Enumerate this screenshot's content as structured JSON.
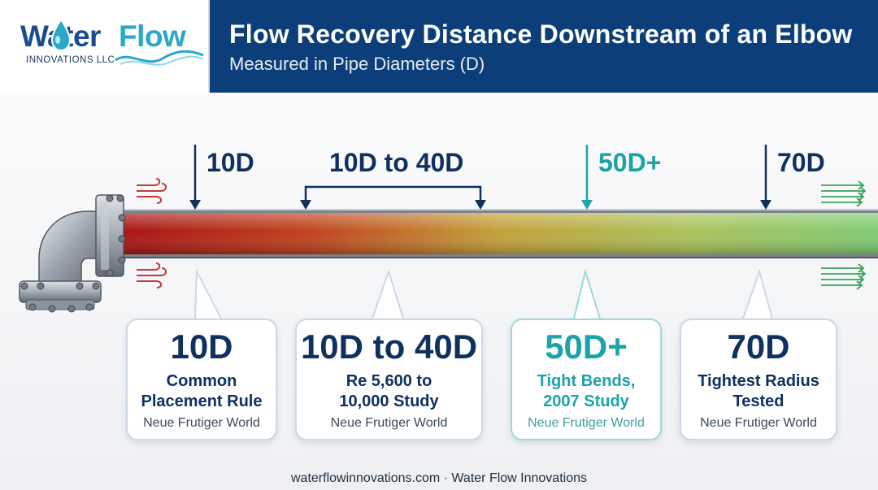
{
  "logo": {
    "brand_word_1": "Water",
    "brand_word_2": "Flow",
    "subtext": "INNOVATIONS LLC"
  },
  "header": {
    "title": "Flow Recovery Distance Downstream of an Elbow",
    "subtitle": "Measured in Pipe Diameters (D)"
  },
  "markers": [
    {
      "label": "10D",
      "style": "single-arrow",
      "color": "#0f3160"
    },
    {
      "label": "10D to 40D",
      "style": "range-bracket",
      "color": "#0f3160"
    },
    {
      "label": "50D+",
      "style": "single-arrow",
      "color": "#1aa3a8"
    },
    {
      "label": "70D",
      "style": "single-arrow",
      "color": "#0f3160"
    }
  ],
  "cards": [
    {
      "value": "10D",
      "desc_line1": "Common",
      "desc_line2": "Placement Rule",
      "source": "Neue Frutiger World"
    },
    {
      "value": "10D to 40D",
      "desc_line1": "Re 5,600 to",
      "desc_line2": "10,000 Study",
      "source": "Neue Frutiger World"
    },
    {
      "value": "50D+",
      "desc_line1": "Tight Bends,",
      "desc_line2": "2007 Study",
      "source": "Neue Frutiger World"
    },
    {
      "value": "70D",
      "desc_line1": "Tightest Radius",
      "desc_line2": "Tested",
      "source": "Neue Frutiger World"
    }
  ],
  "pipe": {
    "gradient_colors": [
      "#b01616",
      "#c0421c",
      "#c3a13a",
      "#a9c25a",
      "#7fcb72"
    ],
    "turbulence_icon": "turbulent-flow-icon",
    "laminar_icon": "laminar-flow-icon",
    "elbow_icon": "pipe-elbow-icon"
  },
  "footer": {
    "text": "waterflowinnovations.com · Water Flow Innovations"
  }
}
